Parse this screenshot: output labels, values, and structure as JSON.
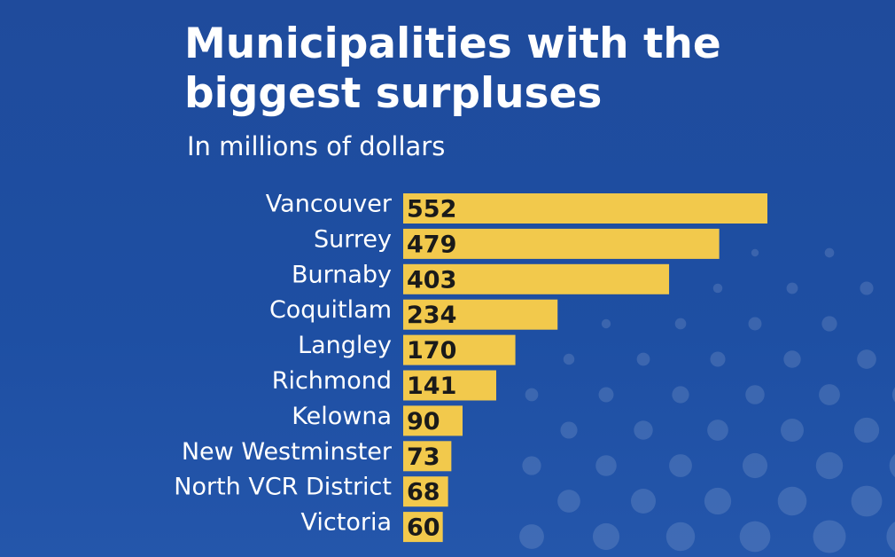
{
  "chart_data": {
    "type": "bar",
    "orientation": "horizontal",
    "title": "Municipalities with the biggest surpluses",
    "subtitle": "In millions of dollars",
    "categories": [
      "Vancouver",
      "Surrey",
      "Burnaby",
      "Coquitlam",
      "Langley",
      "Richmond",
      "Kelowna",
      "New Westminster",
      "North VCR District",
      "Victoria"
    ],
    "values": [
      552,
      479,
      403,
      234,
      170,
      141,
      90,
      73,
      68,
      60
    ],
    "color": "#f2c94c"
  }
}
